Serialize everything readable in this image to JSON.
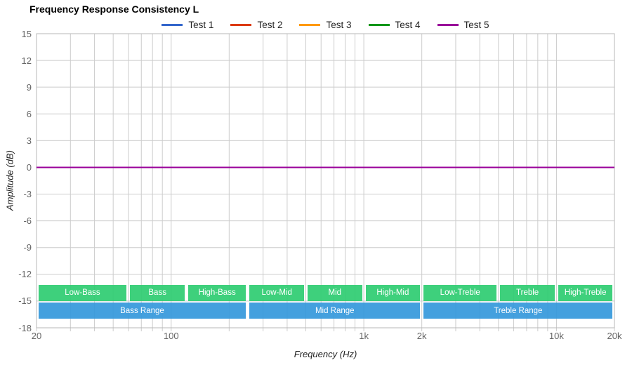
{
  "chart_data": {
    "type": "line",
    "title": "Frequency Response Consistency L",
    "xlabel": "Frequency (Hz)",
    "ylabel": "Amplitude (dB)",
    "x_scale": "log",
    "xlim": [
      20,
      20000
    ],
    "ylim": [
      -18,
      15
    ],
    "grid": true,
    "legend_position": "top",
    "x": [
      20,
      20000
    ],
    "series": [
      {
        "name": "Test 1",
        "color": "#3366CC",
        "values": [
          0,
          0
        ]
      },
      {
        "name": "Test 2",
        "color": "#DC3912",
        "values": [
          0,
          0
        ]
      },
      {
        "name": "Test 3",
        "color": "#FF9900",
        "values": [
          0,
          0
        ]
      },
      {
        "name": "Test 4",
        "color": "#109618",
        "values": [
          0,
          0
        ]
      },
      {
        "name": "Test 5",
        "color": "#990099",
        "values": [
          0,
          0
        ]
      }
    ],
    "yticks": [
      15,
      12,
      9,
      6,
      3,
      0,
      -3,
      -6,
      -9,
      -12,
      -15,
      -18
    ],
    "xticks": [
      {
        "f": 20,
        "label": "20"
      },
      {
        "f": 100,
        "label": "100"
      },
      {
        "f": 1000,
        "label": "1k"
      },
      {
        "f": 2000,
        "label": "2k"
      },
      {
        "f": 10000,
        "label": "10k"
      },
      {
        "f": 20000,
        "label": "20k"
      }
    ],
    "bands": {
      "sub_bands": [
        {
          "label": "Low-Bass",
          "f1": 20,
          "f2": 60
        },
        {
          "label": "Bass",
          "f1": 60,
          "f2": 120
        },
        {
          "label": "High-Bass",
          "f1": 120,
          "f2": 250
        },
        {
          "label": "Low-Mid",
          "f1": 250,
          "f2": 500
        },
        {
          "label": "Mid",
          "f1": 500,
          "f2": 1000
        },
        {
          "label": "High-Mid",
          "f1": 1000,
          "f2": 2000
        },
        {
          "label": "Low-Treble",
          "f1": 2000,
          "f2": 5000
        },
        {
          "label": "Treble",
          "f1": 5000,
          "f2": 10000
        },
        {
          "label": "High-Treble",
          "f1": 10000,
          "f2": 20000
        }
      ],
      "ranges": [
        {
          "label": "Bass Range",
          "f1": 20,
          "f2": 250
        },
        {
          "label": "Mid Range",
          "f1": 250,
          "f2": 2000
        },
        {
          "label": "Treble Range",
          "f1": 2000,
          "f2": 20000
        }
      ]
    },
    "colors": {
      "band_green": "#2ecc71",
      "band_blue": "#3498db",
      "gridline": "#cccccc",
      "border": "#b7b7b7",
      "tick_text": "#666666",
      "zero_line_visible": "#990099"
    }
  }
}
